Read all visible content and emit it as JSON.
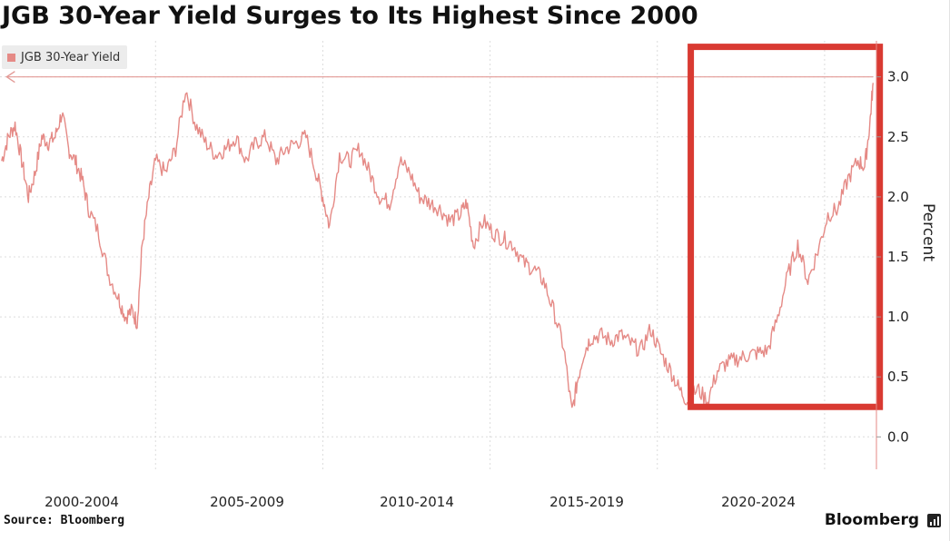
{
  "title": "JGB 30-Year Yield Surges to Its Highest Since 2000",
  "legend_label": "JGB 30-Year Yield",
  "source": "Source: Bloomberg",
  "brand": "Bloomberg",
  "brand_icon": "bloomberg-terminal-icon",
  "colors": {
    "series": "#e58a86",
    "highlight": "#d93a32",
    "grid": "#dcdcdc",
    "arrow": "#e39a96"
  },
  "chart_data": {
    "type": "line",
    "title": "JGB 30-Year Yield Surges to Its Highest Since 2000",
    "xlabel": "",
    "ylabel": "Percent",
    "ylim": [
      -0.27,
      3.3
    ],
    "xlim": [
      1999.35,
      2025.55
    ],
    "y_ticks": [
      0.0,
      0.5,
      1.0,
      1.5,
      2.0,
      2.5,
      3.0
    ],
    "y_tick_labels": [
      "0.0",
      "0.5",
      "1.0",
      "1.5",
      "2.0",
      "2.5",
      "3.0"
    ],
    "x_period_labels": [
      "2000-2004",
      "2005-2009",
      "2010-2014",
      "2015-2019",
      "2020-2024"
    ],
    "x_period_centers": [
      2001.5,
      2006.5,
      2011.5,
      2016.5,
      2021.5
    ],
    "grid": true,
    "legend_position": "top-left",
    "series": [
      {
        "name": "JGB 30-Year Yield",
        "x": [
          1999.4,
          1999.6,
          1999.8,
          2000.0,
          2000.2,
          2000.4,
          2000.6,
          2000.8,
          2001.0,
          2001.2,
          2001.4,
          2001.6,
          2001.8,
          2002.0,
          2002.3,
          2002.6,
          2002.9,
          2003.1,
          2003.3,
          2003.45,
          2003.6,
          2003.8,
          2004.0,
          2004.3,
          2004.6,
          2004.9,
          2005.2,
          2005.5,
          2005.8,
          2006.1,
          2006.4,
          2006.7,
          2007.0,
          2007.3,
          2007.6,
          2007.9,
          2008.2,
          2008.5,
          2008.8,
          2009.0,
          2009.2,
          2009.5,
          2009.8,
          2010.1,
          2010.4,
          2010.7,
          2011.0,
          2011.3,
          2011.6,
          2011.9,
          2012.2,
          2012.5,
          2012.8,
          2013.1,
          2013.3,
          2013.5,
          2013.8,
          2014.1,
          2014.4,
          2014.7,
          2015.0,
          2015.3,
          2015.6,
          2015.9,
          2016.2,
          2016.45,
          2016.6,
          2016.8,
          2017.0,
          2017.3,
          2017.6,
          2017.9,
          2018.2,
          2018.5,
          2018.8,
          2019.1,
          2019.4,
          2019.65,
          2019.9,
          2020.2,
          2020.5,
          2020.8,
          2021.1,
          2021.4,
          2021.7,
          2022.0,
          2022.3,
          2022.6,
          2022.9,
          2023.2,
          2023.5,
          2023.8,
          2024.1,
          2024.4,
          2024.7,
          2025.0,
          2025.2,
          2025.35,
          2025.45
        ],
        "y": [
          2.3,
          2.5,
          2.6,
          2.3,
          2.0,
          2.2,
          2.5,
          2.45,
          2.5,
          2.7,
          2.4,
          2.3,
          2.15,
          1.9,
          1.7,
          1.35,
          1.15,
          1.0,
          1.05,
          0.95,
          1.6,
          2.0,
          2.3,
          2.2,
          2.4,
          2.9,
          2.6,
          2.45,
          2.35,
          2.4,
          2.5,
          2.3,
          2.45,
          2.5,
          2.3,
          2.4,
          2.45,
          2.5,
          2.2,
          2.0,
          1.75,
          2.35,
          2.3,
          2.4,
          2.2,
          2.0,
          1.95,
          2.3,
          2.2,
          2.0,
          1.95,
          1.9,
          1.8,
          1.85,
          1.95,
          1.6,
          1.8,
          1.7,
          1.65,
          1.6,
          1.45,
          1.4,
          1.3,
          1.05,
          0.75,
          0.2,
          0.45,
          0.7,
          0.82,
          0.85,
          0.8,
          0.85,
          0.78,
          0.72,
          0.9,
          0.7,
          0.55,
          0.4,
          0.3,
          0.4,
          0.3,
          0.55,
          0.62,
          0.65,
          0.68,
          0.7,
          0.72,
          1.0,
          1.35,
          1.6,
          1.3,
          1.55,
          1.85,
          1.9,
          2.15,
          2.3,
          2.25,
          2.6,
          2.95
        ]
      }
    ],
    "annotations": [
      {
        "type": "arrow",
        "from_x": 2025.45,
        "to_x": 1999.55,
        "y": 3.0
      },
      {
        "type": "highlight-box",
        "x0": 2020.0,
        "x1": 2025.65,
        "y0": 0.25,
        "y1": 3.25
      }
    ]
  }
}
